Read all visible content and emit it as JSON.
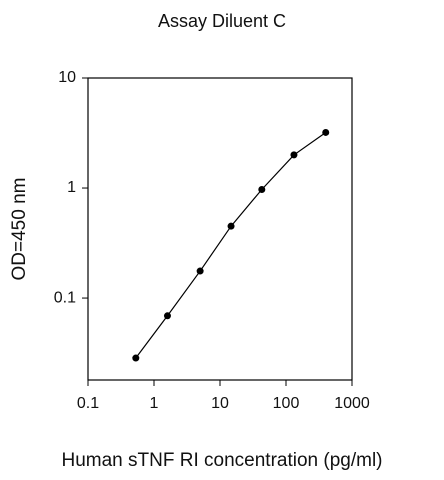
{
  "chart_data": {
    "type": "line",
    "title": "Assay Diluent C",
    "x_label": "Human sTNF RI  concentration (pg/ml)",
    "y_label": "OD=450 nm",
    "x": [
      0.53,
      1.6,
      5.0,
      14.7,
      43,
      132,
      400
    ],
    "series": [
      {
        "values": [
          0.0285,
          0.069,
          0.176,
          0.45,
          0.97,
          2.0,
          3.2
        ],
        "color": "#000000"
      }
    ],
    "xscale": "log",
    "yscale": "log",
    "xlim": [
      0.1,
      1000
    ],
    "ylim": [
      0.018,
      10
    ],
    "xticks": [
      0.1,
      1,
      10,
      100,
      1000
    ],
    "yticks": [
      0.1,
      1,
      10
    ]
  }
}
